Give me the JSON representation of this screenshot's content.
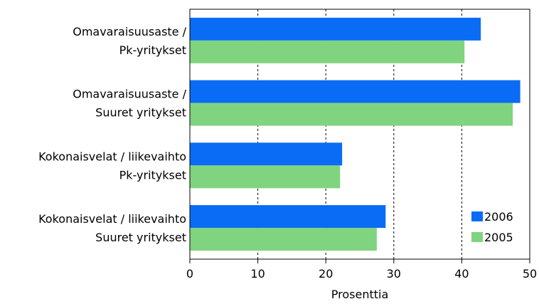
{
  "chart_data": {
    "type": "bar",
    "orientation": "horizontal",
    "categories": [
      [
        "Omavaraisuusaste /",
        "Pk-yritykset"
      ],
      [
        "Omavaraisuusaste /",
        "Suuret yritykset"
      ],
      [
        "Kokonaisvelat / liikevaihto",
        "Pk-yritykset"
      ],
      [
        "Kokonaisvelat / liikevaihto",
        "Suuret yritykset"
      ]
    ],
    "series": [
      {
        "name": "2006",
        "color": "#0a6cf4",
        "values": [
          42.8,
          48.6,
          22.4,
          28.8
        ]
      },
      {
        "name": "2005",
        "color": "#80d480",
        "values": [
          40.4,
          47.5,
          22.1,
          27.5
        ]
      }
    ],
    "xlabel": "Prosenttia",
    "xlim": [
      0,
      50
    ],
    "xticks": [
      0,
      10,
      20,
      30,
      40,
      50
    ],
    "grid": "vertical dashed",
    "legend_position": "bottom-right"
  }
}
